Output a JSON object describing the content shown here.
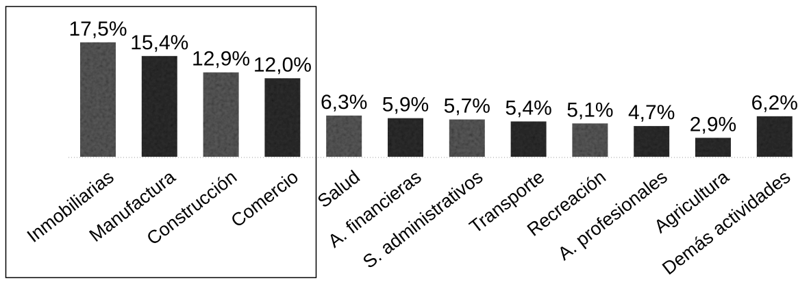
{
  "chart_data": {
    "type": "bar",
    "categories": [
      "Inmobiliarias",
      "Manufactura",
      "Construcción",
      "Comercio",
      "Salud",
      "A. financieras",
      "S. administrativos",
      "Transporte",
      "Recreación",
      "A. profesionales",
      "Agricultura",
      "Demás actividades"
    ],
    "values": [
      17.5,
      15.4,
      12.9,
      12.0,
      6.3,
      5.9,
      5.7,
      5.4,
      5.1,
      4.7,
      2.9,
      6.2
    ],
    "value_labels": [
      "17,5%",
      "15,4%",
      "12,9%",
      "12,0%",
      "6,3%",
      "5,9%",
      "5,7%",
      "5,4%",
      "5,1%",
      "4,7%",
      "2,9%",
      "6,2%"
    ],
    "ylim": [
      0,
      18
    ],
    "grid": false,
    "highlight_box_categories": [
      "Inmobiliarias",
      "Manufactura",
      "Construcción",
      "Comercio"
    ],
    "colors": {
      "bar": "#5a5a5a",
      "bar_dark": "#2e2e2e",
      "baseline": "#9a9a9a",
      "box": "#000000"
    }
  }
}
